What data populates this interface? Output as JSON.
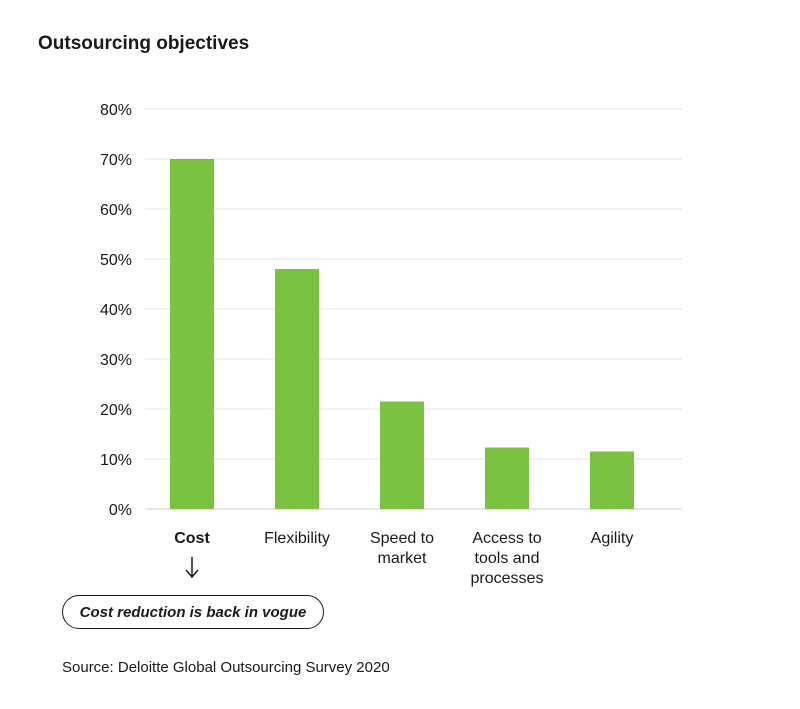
{
  "chart_data": {
    "type": "bar",
    "title": "Outsourcing objectives",
    "categories": [
      [
        "Cost"
      ],
      [
        "Flexibility"
      ],
      [
        "Speed to",
        "market"
      ],
      [
        "Access to",
        "tools and",
        "processes"
      ],
      [
        "Agility"
      ]
    ],
    "values": [
      70,
      48,
      21.5,
      12.3,
      11.5
    ],
    "unit": "%",
    "ylim": [
      0,
      80
    ],
    "yticks": [
      "0%",
      "10%",
      "20%",
      "30%",
      "40%",
      "50%",
      "60%",
      "70%",
      "80%"
    ],
    "highlight_category_index": 0,
    "bar_color": "#7cc242",
    "grid": true
  },
  "callout": {
    "text": "Cost reduction is back in vogue",
    "arrow": "↓"
  },
  "source": "Source: Deloitte Global Outsourcing Survey 2020"
}
